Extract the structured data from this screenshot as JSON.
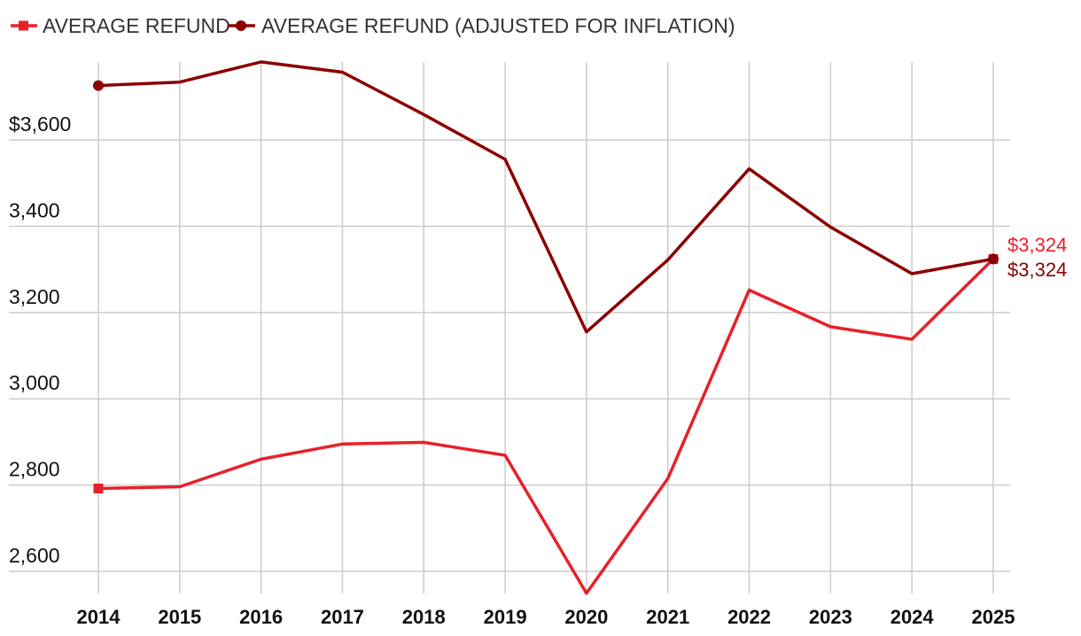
{
  "legend": [
    {
      "label": "AVERAGE REFUND",
      "color": "#e8202a",
      "marker": "square"
    },
    {
      "label": "AVERAGE REFUND (ADJUSTED FOR INFLATION)",
      "color": "#8b0000",
      "marker": "circle"
    }
  ],
  "chart_data": {
    "type": "line",
    "x": [
      "2014",
      "2015",
      "2016",
      "2017",
      "2018",
      "2019",
      "2020",
      "2021",
      "2022",
      "2023",
      "2024",
      "2025"
    ],
    "series": [
      {
        "name": "AVERAGE REFUND",
        "color": "#e8202a",
        "values": [
          2792,
          2796,
          2860,
          2895,
          2899,
          2869,
          2549,
          2815,
          3252,
          3167,
          3138,
          3324
        ]
      },
      {
        "name": "AVERAGE REFUND (ADJUSTED FOR INFLATION)",
        "color": "#8b0000",
        "values": [
          3726,
          3734,
          3781,
          3757,
          3659,
          3555,
          3155,
          3322,
          3533,
          3398,
          3290,
          3324
        ]
      }
    ],
    "y_ticks": [
      2600,
      2800,
      3000,
      3200,
      3400,
      3600
    ],
    "y_tick_labels": [
      "2,600",
      "2,800",
      "3,000",
      "3,200",
      "3,400",
      "$3,600"
    ],
    "end_labels": [
      "$3,324",
      "$3,324"
    ],
    "ylim": [
      2540,
      3800
    ],
    "grid": true,
    "legend_position": "top-left"
  }
}
